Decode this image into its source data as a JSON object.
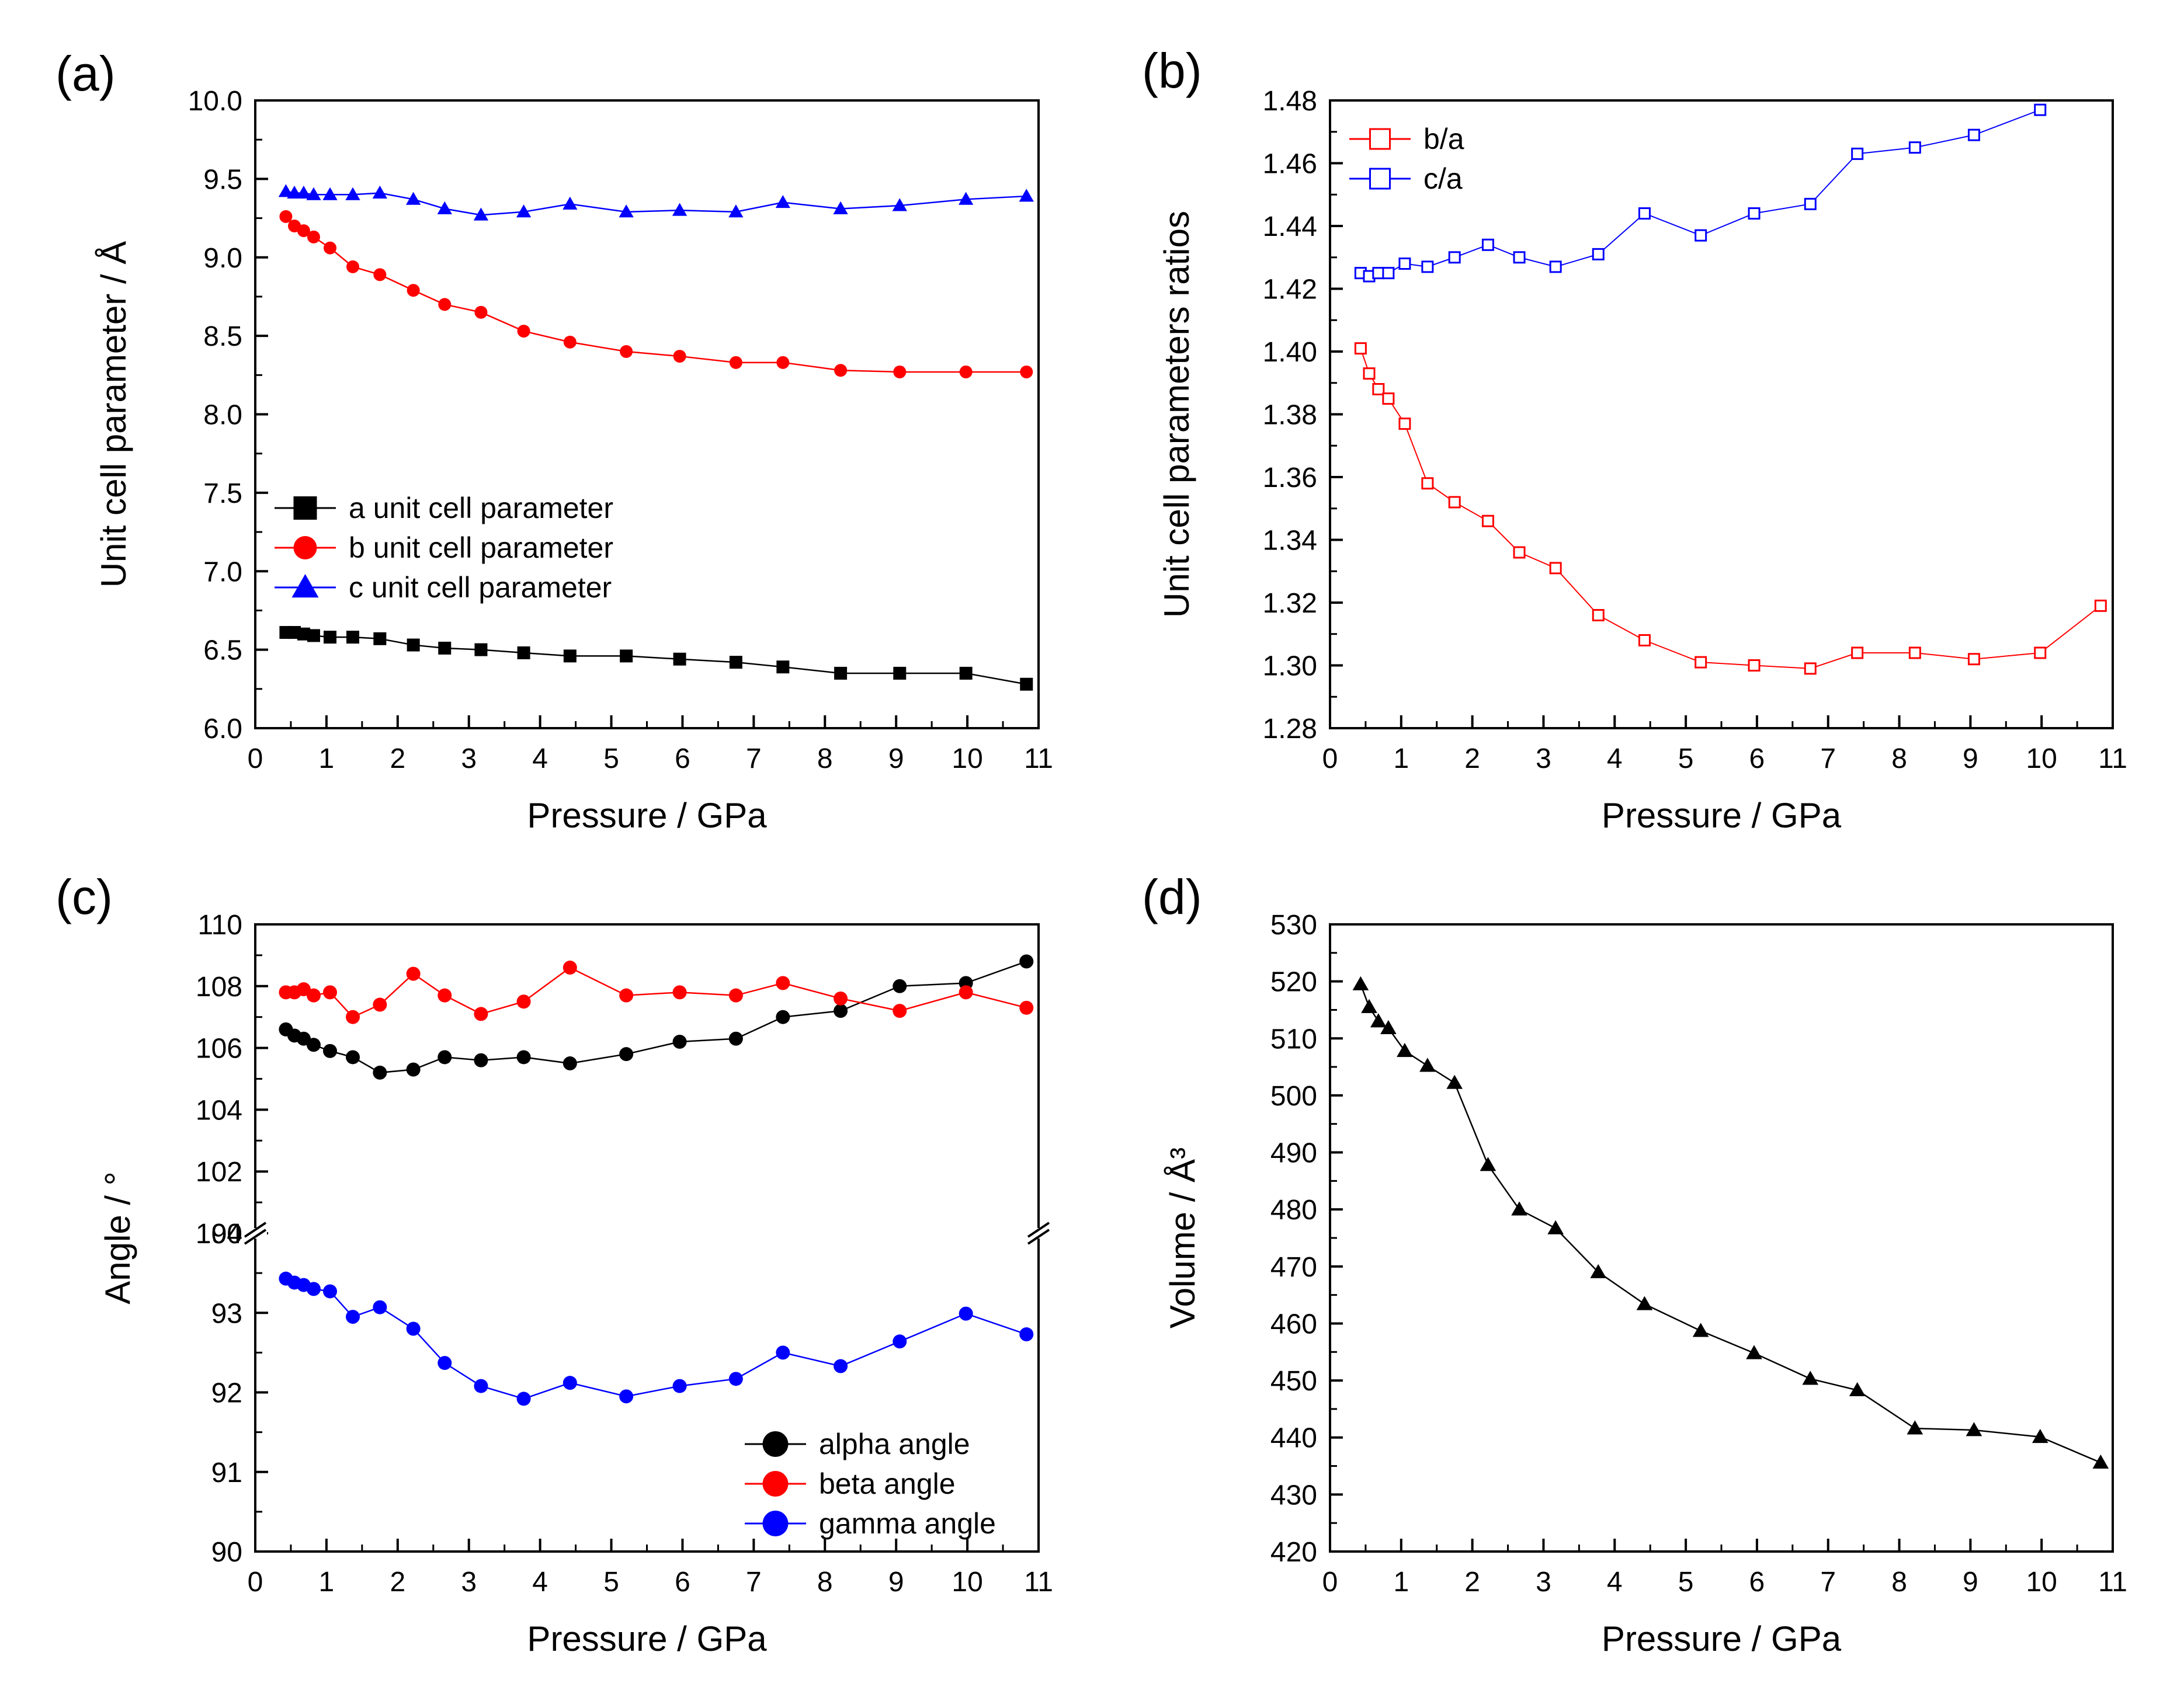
{
  "chart_data": [
    {
      "panel": "(a)",
      "type": "scatter",
      "xlabel": "Pressure / GPa",
      "ylabel": "Unit cell parameter / Å",
      "xlim": [
        0,
        11
      ],
      "ylim": [
        6.0,
        10.0
      ],
      "xticks": [
        "0",
        "1",
        "2",
        "3",
        "4",
        "5",
        "6",
        "7",
        "8",
        "9",
        "10",
        "11"
      ],
      "yticks": [
        "6.0",
        "6.5",
        "7.0",
        "7.5",
        "8.0",
        "8.5",
        "9.0",
        "9.5",
        "10.0"
      ],
      "legend": "center-left",
      "x": [
        0.43,
        0.55,
        0.68,
        0.82,
        1.05,
        1.37,
        1.75,
        2.22,
        2.66,
        3.17,
        3.77,
        4.42,
        5.21,
        5.96,
        6.75,
        7.41,
        8.22,
        9.05,
        9.98,
        10.83
      ],
      "series": [
        {
          "name": "a unit cell parameter",
          "color": "#000000",
          "marker": "square",
          "values": [
            6.61,
            6.61,
            6.6,
            6.59,
            6.58,
            6.58,
            6.57,
            6.53,
            6.51,
            6.5,
            6.48,
            6.46,
            6.46,
            6.44,
            6.42,
            6.39,
            6.35,
            6.35,
            6.35,
            6.28
          ]
        },
        {
          "name": "b unit cell parameter",
          "color": "#ff0000",
          "marker": "circle",
          "values": [
            9.26,
            9.2,
            9.17,
            9.13,
            9.06,
            8.94,
            8.89,
            8.79,
            8.7,
            8.65,
            8.53,
            8.46,
            8.4,
            8.37,
            8.33,
            8.33,
            8.28,
            8.27,
            8.27,
            8.27
          ]
        },
        {
          "name": "c unit cell parameter",
          "color": "#0000ff",
          "marker": "triangle",
          "values": [
            9.42,
            9.41,
            9.41,
            9.4,
            9.4,
            9.4,
            9.41,
            9.37,
            9.31,
            9.27,
            9.29,
            9.34,
            9.29,
            9.3,
            9.29,
            9.35,
            9.31,
            9.33,
            9.37,
            9.39
          ]
        }
      ]
    },
    {
      "panel": "(b)",
      "type": "line",
      "xlabel": "Pressure / GPa",
      "ylabel": "Unit cell parameters ratios",
      "xlim": [
        0,
        11
      ],
      "ylim": [
        1.28,
        1.48
      ],
      "xticks": [
        "0",
        "1",
        "2",
        "3",
        "4",
        "5",
        "6",
        "7",
        "8",
        "9",
        "10",
        "11"
      ],
      "yticks": [
        "1.28",
        "1.30",
        "1.32",
        "1.34",
        "1.36",
        "1.38",
        "1.40",
        "1.42",
        "1.44",
        "1.46",
        "1.48"
      ],
      "legend": "top-left",
      "x": [
        0.43,
        0.55,
        0.68,
        0.82,
        1.05,
        1.37,
        1.75,
        2.22,
        2.66,
        3.17,
        3.77,
        4.42,
        5.21,
        5.96,
        6.75,
        7.41,
        8.22,
        9.05,
        9.98,
        10.83
      ],
      "series": [
        {
          "name": "b/a",
          "color": "#ff0000",
          "marker": "open-square",
          "values": [
            1.401,
            1.393,
            1.388,
            1.385,
            1.377,
            1.358,
            1.352,
            1.346,
            1.336,
            1.331,
            1.316,
            1.308,
            1.301,
            1.3,
            1.299,
            1.304,
            1.304,
            1.302,
            1.304,
            1.319
          ]
        },
        {
          "name": "c/a",
          "color": "#0000ff",
          "marker": "open-square",
          "values": [
            1.425,
            1.424,
            1.425,
            1.425,
            1.428,
            1.427,
            1.43,
            1.434,
            1.43,
            1.427,
            1.431,
            1.444,
            1.437,
            1.444,
            1.447,
            1.463,
            1.465,
            1.469,
            1.477,
            null
          ]
        }
      ]
    },
    {
      "panel": "(c)",
      "type": "line",
      "xlabel": "Pressure / GPa",
      "ylabel": "Angle / °",
      "xlim": [
        0,
        11
      ],
      "ylim_upper": [
        100,
        110
      ],
      "ylim_lower": [
        90,
        94
      ],
      "axis_break": [
        94,
        100
      ],
      "xticks": [
        "0",
        "1",
        "2",
        "3",
        "4",
        "5",
        "6",
        "7",
        "8",
        "9",
        "10",
        "11"
      ],
      "yticks_upper": [
        "100",
        "102",
        "104",
        "106",
        "108",
        "110"
      ],
      "yticks_lower": [
        "90",
        "91",
        "92",
        "93",
        "94"
      ],
      "legend": "bottom-right",
      "x": [
        0.43,
        0.55,
        0.68,
        0.82,
        1.05,
        1.37,
        1.75,
        2.22,
        2.66,
        3.17,
        3.77,
        4.42,
        5.21,
        5.96,
        6.75,
        7.41,
        8.22,
        9.05,
        9.98,
        10.83
      ],
      "series": [
        {
          "name": "alpha angle",
          "color": "#000000",
          "marker": "circle",
          "values": [
            106.6,
            106.4,
            106.3,
            106.1,
            105.9,
            105.7,
            105.2,
            105.3,
            105.7,
            105.6,
            105.7,
            105.5,
            105.8,
            106.2,
            106.3,
            107.0,
            107.2,
            108.0,
            108.1,
            108.8
          ]
        },
        {
          "name": "beta angle",
          "color": "#ff0000",
          "marker": "circle",
          "values": [
            107.8,
            107.8,
            107.9,
            107.7,
            107.8,
            107.0,
            107.4,
            108.4,
            107.7,
            107.1,
            107.5,
            108.6,
            107.7,
            107.8,
            107.7,
            108.1,
            107.6,
            107.2,
            107.8,
            107.3
          ]
        },
        {
          "name": "gamma angle",
          "color": "#0000ff",
          "marker": "circle",
          "values": [
            93.43,
            93.38,
            93.35,
            93.3,
            93.27,
            92.95,
            93.07,
            92.8,
            92.37,
            92.08,
            91.92,
            92.12,
            91.95,
            92.08,
            92.17,
            92.5,
            92.33,
            92.64,
            92.99,
            92.73
          ]
        }
      ]
    },
    {
      "panel": "(d)",
      "type": "line",
      "xlabel": "Pressure / GPa",
      "ylabel": "Volume / Å³",
      "xlim": [
        0,
        11
      ],
      "ylim": [
        420,
        530
      ],
      "xticks": [
        "0",
        "1",
        "2",
        "3",
        "4",
        "5",
        "6",
        "7",
        "8",
        "9",
        "10",
        "11"
      ],
      "yticks": [
        "420",
        "430",
        "440",
        "450",
        "460",
        "470",
        "480",
        "490",
        "500",
        "510",
        "520",
        "530"
      ],
      "x": [
        0.43,
        0.55,
        0.68,
        0.82,
        1.05,
        1.37,
        1.75,
        2.22,
        2.66,
        3.17,
        3.77,
        4.42,
        5.21,
        5.96,
        6.75,
        7.41,
        8.22,
        9.05,
        9.98,
        10.83
      ],
      "series": [
        {
          "name": "Volume",
          "color": "#000000",
          "marker": "triangle",
          "values": [
            519.5,
            515.5,
            513.0,
            511.8,
            507.8,
            505.2,
            502.2,
            487.8,
            480.0,
            476.7,
            469.0,
            463.4,
            458.7,
            454.8,
            450.3,
            448.3,
            441.6,
            441.3,
            440.1,
            435.6
          ]
        }
      ]
    }
  ]
}
